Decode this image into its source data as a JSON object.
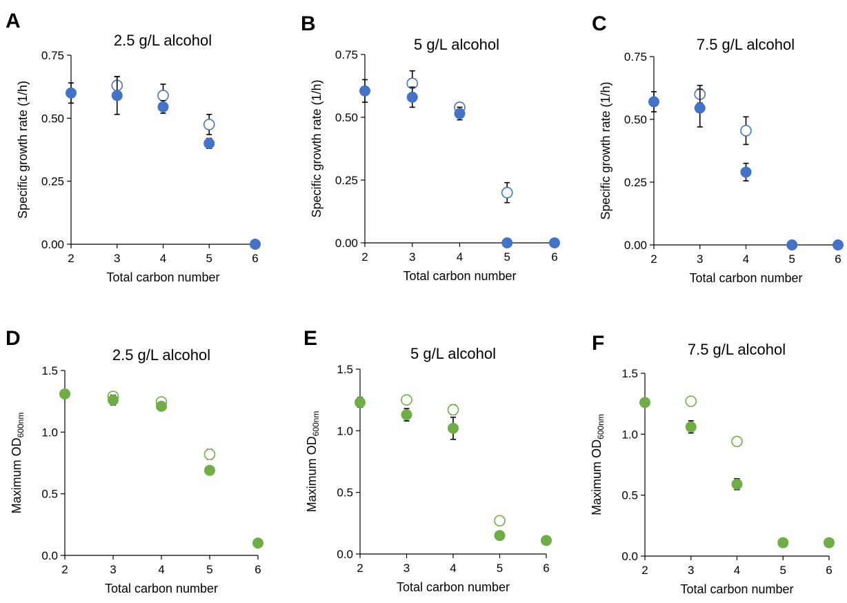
{
  "colors": {
    "blue": "#4472C4",
    "green": "#70AD47",
    "axis": "#000000"
  },
  "chart_data": [
    {
      "panel": "A",
      "type": "scatter",
      "title": "2.5 g/L alcohol",
      "xlabel": "Total carbon number",
      "ylabel": "Specific growth rate (1/h)",
      "xlim": [
        2,
        6
      ],
      "ylim": [
        0,
        0.75
      ],
      "xticks": [
        "2",
        "3",
        "4",
        "5",
        "6"
      ],
      "yticks": [
        "0.00",
        "0.25",
        "0.50",
        "0.75"
      ],
      "color": "#4472C4",
      "series": [
        {
          "marker": "filled",
          "points": [
            {
              "x": 2,
              "y": 0.6,
              "err": 0.04
            },
            {
              "x": 3,
              "y": 0.59,
              "err": 0.075
            },
            {
              "x": 4,
              "y": 0.545,
              "err": 0.025
            },
            {
              "x": 5,
              "y": 0.4,
              "err": 0.02
            },
            {
              "x": 6,
              "y": 0.0,
              "err": 0
            }
          ]
        },
        {
          "marker": "open",
          "points": [
            {
              "x": 3,
              "y": 0.63,
              "err": 0.035
            },
            {
              "x": 4,
              "y": 0.59,
              "err": 0.045
            },
            {
              "x": 5,
              "y": 0.475,
              "err": 0.04
            }
          ]
        }
      ]
    },
    {
      "panel": "B",
      "type": "scatter",
      "title": "5 g/L alcohol",
      "xlabel": "Total carbon number",
      "ylabel": "Specific growth rate (1/h)",
      "xlim": [
        2,
        6
      ],
      "ylim": [
        0,
        0.75
      ],
      "xticks": [
        "2",
        "3",
        "4",
        "5",
        "6"
      ],
      "yticks": [
        "0.00",
        "0.25",
        "0.50",
        "0.75"
      ],
      "color": "#4472C4",
      "series": [
        {
          "marker": "filled",
          "points": [
            {
              "x": 2,
              "y": 0.605,
              "err": 0.045
            },
            {
              "x": 3,
              "y": 0.58,
              "err": 0.04
            },
            {
              "x": 4,
              "y": 0.515,
              "err": 0.025
            },
            {
              "x": 5,
              "y": 0.0,
              "err": 0
            },
            {
              "x": 6,
              "y": 0.0,
              "err": 0
            }
          ]
        },
        {
          "marker": "open",
          "points": [
            {
              "x": 3,
              "y": 0.635,
              "err": 0.05
            },
            {
              "x": 4,
              "y": 0.54,
              "err": 0.01
            },
            {
              "x": 5,
              "y": 0.2,
              "err": 0.04
            }
          ]
        }
      ]
    },
    {
      "panel": "C",
      "type": "scatter",
      "title": "7.5 g/L alcohol",
      "xlabel": "Total carbon number",
      "ylabel": "Specific growth rate (1/h)",
      "xlim": [
        2,
        6
      ],
      "ylim": [
        0,
        0.75
      ],
      "xticks": [
        "2",
        "3",
        "4",
        "5",
        "6"
      ],
      "yticks": [
        "0.00",
        "0.25",
        "0.50",
        "0.75"
      ],
      "color": "#4472C4",
      "series": [
        {
          "marker": "filled",
          "points": [
            {
              "x": 2,
              "y": 0.57,
              "err": 0.04
            },
            {
              "x": 3,
              "y": 0.545,
              "err": 0.075
            },
            {
              "x": 4,
              "y": 0.29,
              "err": 0.035
            },
            {
              "x": 5,
              "y": 0.0,
              "err": 0
            },
            {
              "x": 6,
              "y": 0.0,
              "err": 0
            }
          ]
        },
        {
          "marker": "open",
          "points": [
            {
              "x": 3,
              "y": 0.6,
              "err": 0.035
            },
            {
              "x": 4,
              "y": 0.455,
              "err": 0.055
            }
          ]
        }
      ]
    },
    {
      "panel": "D",
      "type": "scatter",
      "title": "2.5 g/L alcohol",
      "xlabel": "Total carbon number",
      "ylabel_main": "Maximum OD",
      "ylabel_sub": "600nm",
      "xlim": [
        2,
        6
      ],
      "ylim": [
        0,
        1.5
      ],
      "xticks": [
        "2",
        "3",
        "4",
        "5",
        "6"
      ],
      "yticks": [
        "0.0",
        "0.5",
        "1.0",
        "1.5"
      ],
      "color": "#70AD47",
      "series": [
        {
          "marker": "filled",
          "points": [
            {
              "x": 2,
              "y": 1.31,
              "err": 0.03
            },
            {
              "x": 3,
              "y": 1.26,
              "err": 0.04
            },
            {
              "x": 4,
              "y": 1.21,
              "err": 0.02
            },
            {
              "x": 5,
              "y": 0.69,
              "err": 0.02
            },
            {
              "x": 6,
              "y": 0.1,
              "err": 0
            }
          ]
        },
        {
          "marker": "open",
          "points": [
            {
              "x": 3,
              "y": 1.29,
              "err": 0.03
            },
            {
              "x": 4,
              "y": 1.245,
              "err": 0.02
            },
            {
              "x": 5,
              "y": 0.82,
              "err": 0.04
            }
          ]
        }
      ]
    },
    {
      "panel": "E",
      "type": "scatter",
      "title": "5 g/L alcohol",
      "xlabel": "Total carbon number",
      "ylabel_main": "Maximum OD",
      "ylabel_sub": "600nm",
      "xlim": [
        2,
        6
      ],
      "ylim": [
        0,
        1.5
      ],
      "xticks": [
        "2",
        "3",
        "4",
        "5",
        "6"
      ],
      "yticks": [
        "0.0",
        "0.5",
        "1.0",
        "1.5"
      ],
      "color": "#70AD47",
      "series": [
        {
          "marker": "filled",
          "points": [
            {
              "x": 2,
              "y": 1.23,
              "err": 0.04
            },
            {
              "x": 3,
              "y": 1.13,
              "err": 0.05
            },
            {
              "x": 4,
              "y": 1.02,
              "err": 0.09
            },
            {
              "x": 5,
              "y": 0.15,
              "err": 0
            },
            {
              "x": 6,
              "y": 0.11,
              "err": 0
            }
          ]
        },
        {
          "marker": "open",
          "points": [
            {
              "x": 3,
              "y": 1.25,
              "err": 0.01
            },
            {
              "x": 4,
              "y": 1.17,
              "err": 0.04
            },
            {
              "x": 5,
              "y": 0.27,
              "err": 0
            }
          ]
        }
      ]
    },
    {
      "panel": "F",
      "type": "scatter",
      "title": "7.5 g/L alcohol",
      "xlabel": "Total carbon number",
      "ylabel_main": "Maximum OD",
      "ylabel_sub": "600nm",
      "xlim": [
        2,
        6
      ],
      "ylim": [
        0,
        1.5
      ],
      "xticks": [
        "2",
        "3",
        "4",
        "5",
        "6"
      ],
      "yticks": [
        "0.0",
        "0.5",
        "1.0",
        "1.5"
      ],
      "color": "#70AD47",
      "series": [
        {
          "marker": "filled",
          "points": [
            {
              "x": 2,
              "y": 1.26,
              "err": 0.03
            },
            {
              "x": 3,
              "y": 1.06,
              "err": 0.05
            },
            {
              "x": 4,
              "y": 0.59,
              "err": 0.045
            },
            {
              "x": 5,
              "y": 0.11,
              "err": 0
            },
            {
              "x": 6,
              "y": 0.11,
              "err": 0
            }
          ]
        },
        {
          "marker": "open",
          "points": [
            {
              "x": 3,
              "y": 1.27,
              "err": 0
            },
            {
              "x": 4,
              "y": 0.94,
              "err": 0
            }
          ]
        }
      ]
    }
  ]
}
